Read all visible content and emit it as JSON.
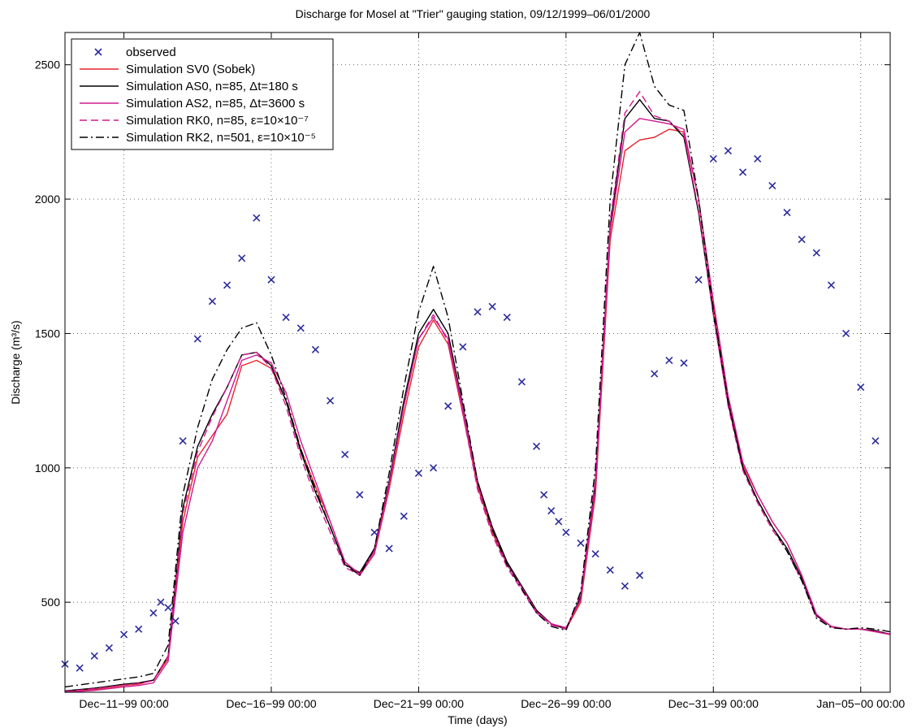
{
  "chart_data": {
    "type": "line",
    "title": "Discharge for Mosel at \"Trier\" gauging station, 09/12/1999–06/01/2000",
    "xlabel": "Time (days)",
    "ylabel": "Discharge (m³/s)",
    "xlim": [
      "1999-12-09 00:00",
      "2000-01-06 00:00"
    ],
    "ylim": [
      165,
      2620
    ],
    "grid": true,
    "legend_position": "top-left",
    "x_ticks": [
      "1999-12-11",
      "1999-12-16",
      "1999-12-21",
      "1999-12-26",
      "1999-12-31",
      "2000-01-05"
    ],
    "x_tick_labels": [
      "Dec−11−99 00:00",
      "Dec−16−99 00:00",
      "Dec−21−99 00:00",
      "Dec−26−99 00:00",
      "Dec−31−99 00:00",
      "Jan−05−00 00:00"
    ],
    "y_ticks": [
      500,
      1000,
      1500,
      2000,
      2500
    ],
    "y_tick_labels": [
      "500",
      "1000",
      "1500",
      "2000",
      "2500"
    ],
    "series": [
      {
        "name": "observed",
        "style": "marker-x",
        "color": "#2b2b9c",
        "x": [
          "1999-12-09 00:00",
          "1999-12-09 12:00",
          "1999-12-10 00:00",
          "1999-12-10 12:00",
          "1999-12-11 00:00",
          "1999-12-11 12:00",
          "1999-12-12 00:00",
          "1999-12-12 06:00",
          "1999-12-12 12:00",
          "1999-12-12 18:00",
          "1999-12-13 00:00",
          "1999-12-13 12:00",
          "1999-12-14 00:00",
          "1999-12-14 12:00",
          "1999-12-15 00:00",
          "1999-12-15 12:00",
          "1999-12-16 00:00",
          "1999-12-16 12:00",
          "1999-12-17 00:00",
          "1999-12-17 12:00",
          "1999-12-18 00:00",
          "1999-12-18 12:00",
          "1999-12-19 00:00",
          "1999-12-19 12:00",
          "1999-12-20 00:00",
          "1999-12-20 12:00",
          "1999-12-21 00:00",
          "1999-12-21 12:00",
          "1999-12-22 00:00",
          "1999-12-22 12:00",
          "1999-12-23 00:00",
          "1999-12-23 12:00",
          "1999-12-24 00:00",
          "1999-12-24 12:00",
          "1999-12-25 00:00",
          "1999-12-25 06:00",
          "1999-12-25 12:00",
          "1999-12-25 18:00",
          "1999-12-26 00:00",
          "1999-12-26 12:00",
          "1999-12-27 00:00",
          "1999-12-27 12:00",
          "1999-12-28 00:00",
          "1999-12-28 12:00",
          "1999-12-29 00:00",
          "1999-12-29 12:00",
          "1999-12-30 00:00",
          "1999-12-30 12:00",
          "1999-12-31 00:00",
          "1999-12-31 12:00",
          "2000-01-01 00:00",
          "2000-01-01 12:00",
          "2000-01-02 00:00",
          "2000-01-02 12:00",
          "2000-01-03 00:00",
          "2000-01-03 12:00",
          "2000-01-04 00:00",
          "2000-01-04 12:00",
          "2000-01-05 00:00",
          "2000-01-05 12:00"
        ],
        "y": [
          270,
          255,
          300,
          330,
          380,
          400,
          460,
          500,
          480,
          430,
          1100,
          1480,
          1620,
          1680,
          1780,
          1930,
          1700,
          1560,
          1520,
          1440,
          1250,
          1050,
          900,
          760,
          700,
          820,
          980,
          1000,
          1230,
          1450,
          1580,
          1600,
          1560,
          1320,
          1080,
          900,
          840,
          800,
          760,
          720,
          680,
          620,
          560,
          600,
          1350,
          1400,
          1390,
          1700,
          2150,
          2180,
          2100,
          2150,
          2050,
          1950,
          1850,
          1800,
          1680,
          1500,
          1300,
          1100
        ]
      },
      {
        "name": "Simulation SV0 (Sobek)",
        "style": "solid",
        "color": "#e8242e",
        "x": [
          "1999-12-09 00:00",
          "1999-12-10 00:00",
          "1999-12-11 00:00",
          "1999-12-11 12:00",
          "1999-12-12 00:00",
          "1999-12-12 12:00",
          "1999-12-13 00:00",
          "1999-12-13 12:00",
          "1999-12-14 00:00",
          "1999-12-14 12:00",
          "1999-12-15 00:00",
          "1999-12-15 12:00",
          "1999-12-16 00:00",
          "1999-12-16 12:00",
          "1999-12-17 00:00",
          "1999-12-17 12:00",
          "1999-12-18 00:00",
          "1999-12-18 12:00",
          "1999-12-19 00:00",
          "1999-12-19 12:00",
          "1999-12-20 00:00",
          "1999-12-20 12:00",
          "1999-12-21 00:00",
          "1999-12-21 12:00",
          "1999-12-22 00:00",
          "1999-12-22 12:00",
          "1999-12-23 00:00",
          "1999-12-23 12:00",
          "1999-12-24 00:00",
          "1999-12-24 12:00",
          "1999-12-25 00:00",
          "1999-12-25 12:00",
          "1999-12-26 00:00",
          "1999-12-26 12:00",
          "1999-12-27 00:00",
          "1999-12-27 12:00",
          "1999-12-28 00:00",
          "1999-12-28 12:00",
          "1999-12-29 00:00",
          "1999-12-29 12:00",
          "1999-12-30 00:00",
          "1999-12-30 12:00",
          "1999-12-31 00:00",
          "1999-12-31 12:00",
          "2000-01-01 00:00",
          "2000-01-01 12:00",
          "2000-01-02 00:00",
          "2000-01-02 12:00",
          "2000-01-03 00:00",
          "2000-01-03 12:00",
          "2000-01-04 00:00",
          "2000-01-04 12:00",
          "2000-01-05 00:00",
          "2000-01-05 12:00",
          "2000-01-06 00:00"
        ],
        "y": [
          170,
          175,
          190,
          195,
          210,
          290,
          800,
          1040,
          1120,
          1200,
          1380,
          1400,
          1370,
          1250,
          1070,
          930,
          800,
          650,
          600,
          680,
          920,
          1200,
          1450,
          1550,
          1460,
          1200,
          930,
          760,
          640,
          560,
          470,
          420,
          400,
          500,
          900,
          1850,
          2180,
          2220,
          2230,
          2260,
          2250,
          2000,
          1600,
          1250,
          1010,
          900,
          800,
          720,
          600,
          450,
          410,
          400,
          400,
          390,
          380
        ]
      },
      {
        "name": "Simulation AS0, n=85, Δt=180 s",
        "style": "solid",
        "color": "#000000",
        "x": [
          "1999-12-09 00:00",
          "1999-12-10 00:00",
          "1999-12-11 00:00",
          "1999-12-11 12:00",
          "1999-12-12 00:00",
          "1999-12-12 12:00",
          "1999-12-13 00:00",
          "1999-12-13 12:00",
          "1999-12-14 00:00",
          "1999-12-14 12:00",
          "1999-12-15 00:00",
          "1999-12-15 12:00",
          "1999-12-16 00:00",
          "1999-12-16 12:00",
          "1999-12-17 00:00",
          "1999-12-17 12:00",
          "1999-12-18 00:00",
          "1999-12-18 12:00",
          "1999-12-19 00:00",
          "1999-12-19 12:00",
          "1999-12-20 00:00",
          "1999-12-20 12:00",
          "1999-12-21 00:00",
          "1999-12-21 12:00",
          "1999-12-22 00:00",
          "1999-12-22 12:00",
          "1999-12-23 00:00",
          "1999-12-23 12:00",
          "1999-12-24 00:00",
          "1999-12-24 12:00",
          "1999-12-25 00:00",
          "1999-12-25 12:00",
          "1999-12-26 00:00",
          "1999-12-26 12:00",
          "1999-12-27 00:00",
          "1999-12-27 12:00",
          "1999-12-28 00:00",
          "1999-12-28 12:00",
          "1999-12-29 00:00",
          "1999-12-29 12:00",
          "1999-12-30 00:00",
          "1999-12-30 12:00",
          "1999-12-31 00:00",
          "1999-12-31 12:00",
          "2000-01-01 00:00",
          "2000-01-01 12:00",
          "2000-01-02 00:00",
          "2000-01-02 12:00",
          "2000-01-03 00:00",
          "2000-01-03 12:00",
          "2000-01-04 00:00",
          "2000-01-04 12:00",
          "2000-01-05 00:00",
          "2000-01-05 12:00",
          "2000-01-06 00:00"
        ],
        "y": [
          170,
          180,
          195,
          200,
          210,
          300,
          850,
          1080,
          1200,
          1300,
          1420,
          1430,
          1380,
          1250,
          1060,
          910,
          780,
          640,
          610,
          700,
          950,
          1250,
          1500,
          1590,
          1500,
          1230,
          950,
          780,
          650,
          560,
          470,
          420,
          400,
          520,
          950,
          1900,
          2300,
          2370,
          2300,
          2290,
          2230,
          1950,
          1570,
          1240,
          1000,
          880,
          780,
          700,
          590,
          450,
          410,
          400,
          400,
          395,
          380
        ]
      },
      {
        "name": "Simulation AS2, n=85, Δt=3600 s",
        "style": "solid",
        "color": "#d11a8e",
        "x": [
          "1999-12-09 00:00",
          "1999-12-10 00:00",
          "1999-12-11 00:00",
          "1999-12-11 12:00",
          "1999-12-12 00:00",
          "1999-12-12 12:00",
          "1999-12-13 00:00",
          "1999-12-13 12:00",
          "1999-12-14 00:00",
          "1999-12-14 12:00",
          "1999-12-15 00:00",
          "1999-12-15 12:00",
          "1999-12-16 00:00",
          "1999-12-16 12:00",
          "1999-12-17 00:00",
          "1999-12-17 12:00",
          "1999-12-18 00:00",
          "1999-12-18 12:00",
          "1999-12-19 00:00",
          "1999-12-19 12:00",
          "1999-12-20 00:00",
          "1999-12-20 12:00",
          "1999-12-21 00:00",
          "1999-12-21 12:00",
          "1999-12-22 00:00",
          "1999-12-22 12:00",
          "1999-12-23 00:00",
          "1999-12-23 12:00",
          "1999-12-24 00:00",
          "1999-12-24 12:00",
          "1999-12-25 00:00",
          "1999-12-25 12:00",
          "1999-12-26 00:00",
          "1999-12-26 12:00",
          "1999-12-27 00:00",
          "1999-12-27 12:00",
          "1999-12-28 00:00",
          "1999-12-28 12:00",
          "1999-12-29 00:00",
          "1999-12-29 12:00",
          "1999-12-30 00:00",
          "1999-12-30 12:00",
          "1999-12-31 00:00",
          "1999-12-31 12:00",
          "2000-01-01 00:00",
          "2000-01-01 12:00",
          "2000-01-02 00:00",
          "2000-01-02 12:00",
          "2000-01-03 00:00",
          "2000-01-03 12:00",
          "2000-01-04 00:00",
          "2000-01-04 12:00",
          "2000-01-05 00:00",
          "2000-01-05 12:00",
          "2000-01-06 00:00"
        ],
        "y": [
          165,
          172,
          185,
          190,
          200,
          280,
          760,
          1000,
          1100,
          1250,
          1400,
          1420,
          1390,
          1280,
          1100,
          950,
          800,
          650,
          605,
          690,
          940,
          1230,
          1480,
          1560,
          1480,
          1220,
          940,
          770,
          640,
          555,
          465,
          420,
          405,
          510,
          920,
          1880,
          2250,
          2300,
          2290,
          2280,
          2260,
          2000,
          1620,
          1270,
          1020,
          900,
          800,
          720,
          600,
          455,
          410,
          400,
          400,
          390,
          380
        ]
      },
      {
        "name": "Simulation RK0, n=85, ε=10×10⁻⁷",
        "style": "dashed",
        "color": "#d11a8e",
        "x": [
          "1999-12-09 00:00",
          "1999-12-10 00:00",
          "1999-12-11 00:00",
          "1999-12-11 12:00",
          "1999-12-12 00:00",
          "1999-12-12 12:00",
          "1999-12-13 00:00",
          "1999-12-13 12:00",
          "1999-12-14 00:00",
          "1999-12-14 12:00",
          "1999-12-15 00:00",
          "1999-12-15 12:00",
          "1999-12-16 00:00",
          "1999-12-16 12:00",
          "1999-12-17 00:00",
          "1999-12-17 12:00",
          "1999-12-18 00:00",
          "1999-12-18 12:00",
          "1999-12-19 00:00",
          "1999-12-19 12:00",
          "1999-12-20 00:00",
          "1999-12-20 12:00",
          "1999-12-21 00:00",
          "1999-12-21 12:00",
          "1999-12-22 00:00",
          "1999-12-22 12:00",
          "1999-12-23 00:00",
          "1999-12-23 12:00",
          "1999-12-24 00:00",
          "1999-12-24 12:00",
          "1999-12-25 00:00",
          "1999-12-25 12:00",
          "1999-12-26 00:00",
          "1999-12-26 12:00",
          "1999-12-27 00:00",
          "1999-12-27 12:00",
          "1999-12-28 00:00",
          "1999-12-28 12:00",
          "1999-12-29 00:00",
          "1999-12-29 12:00",
          "1999-12-30 00:00",
          "1999-12-30 12:00",
          "1999-12-31 00:00",
          "1999-12-31 12:00",
          "2000-01-01 00:00",
          "2000-01-01 12:00",
          "2000-01-02 00:00",
          "2000-01-02 12:00",
          "2000-01-03 00:00",
          "2000-01-03 12:00",
          "2000-01-04 00:00",
          "2000-01-04 12:00",
          "2000-01-05 00:00",
          "2000-01-05 12:00",
          "2000-01-06 00:00"
        ],
        "y": [
          168,
          178,
          192,
          198,
          208,
          300,
          830,
          1060,
          1190,
          1300,
          1420,
          1430,
          1370,
          1230,
          1040,
          890,
          760,
          630,
          600,
          680,
          930,
          1230,
          1480,
          1570,
          1470,
          1200,
          920,
          750,
          630,
          545,
          460,
          415,
          400,
          530,
          960,
          1920,
          2320,
          2400,
          2310,
          2290,
          2240,
          1960,
          1570,
          1230,
          990,
          870,
          770,
          690,
          580,
          445,
          408,
          400,
          400,
          392,
          382
        ]
      },
      {
        "name": "Simulation RK2, n=501, ε=10×10⁻⁵",
        "style": "dash-dot",
        "color": "#000000",
        "x": [
          "1999-12-09 00:00",
          "1999-12-10 00:00",
          "1999-12-11 00:00",
          "1999-12-11 12:00",
          "1999-12-12 00:00",
          "1999-12-12 12:00",
          "1999-12-13 00:00",
          "1999-12-13 12:00",
          "1999-12-14 00:00",
          "1999-12-14 12:00",
          "1999-12-15 00:00",
          "1999-12-15 12:00",
          "1999-12-16 00:00",
          "1999-12-16 12:00",
          "1999-12-17 00:00",
          "1999-12-17 12:00",
          "1999-12-18 00:00",
          "1999-12-18 12:00",
          "1999-12-19 00:00",
          "1999-12-19 12:00",
          "1999-12-20 00:00",
          "1999-12-20 12:00",
          "1999-12-21 00:00",
          "1999-12-21 12:00",
          "1999-12-22 00:00",
          "1999-12-22 12:00",
          "1999-12-23 00:00",
          "1999-12-23 12:00",
          "1999-12-24 00:00",
          "1999-12-24 12:00",
          "1999-12-25 00:00",
          "1999-12-25 12:00",
          "1999-12-26 00:00",
          "1999-12-26 12:00",
          "1999-12-27 00:00",
          "1999-12-27 12:00",
          "1999-12-28 00:00",
          "1999-12-28 12:00",
          "1999-12-29 00:00",
          "1999-12-29 12:00",
          "1999-12-30 00:00",
          "1999-12-30 12:00",
          "1999-12-31 00:00",
          "1999-12-31 12:00",
          "2000-01-01 00:00",
          "2000-01-01 12:00",
          "2000-01-02 00:00",
          "2000-01-02 12:00",
          "2000-01-03 00:00",
          "2000-01-03 12:00",
          "2000-01-04 00:00",
          "2000-01-04 12:00",
          "2000-01-05 00:00",
          "2000-01-05 12:00",
          "2000-01-06 00:00"
        ],
        "y": [
          185,
          200,
          215,
          222,
          235,
          340,
          900,
          1150,
          1330,
          1440,
          1520,
          1540,
          1420,
          1260,
          1070,
          920,
          780,
          640,
          600,
          700,
          980,
          1300,
          1580,
          1750,
          1560,
          1250,
          950,
          770,
          640,
          550,
          460,
          410,
          395,
          540,
          1000,
          2000,
          2500,
          2620,
          2420,
          2350,
          2330,
          2000,
          1590,
          1250,
          1000,
          880,
          780,
          690,
          580,
          440,
          405,
          400,
          405,
          400,
          390
        ]
      }
    ]
  }
}
